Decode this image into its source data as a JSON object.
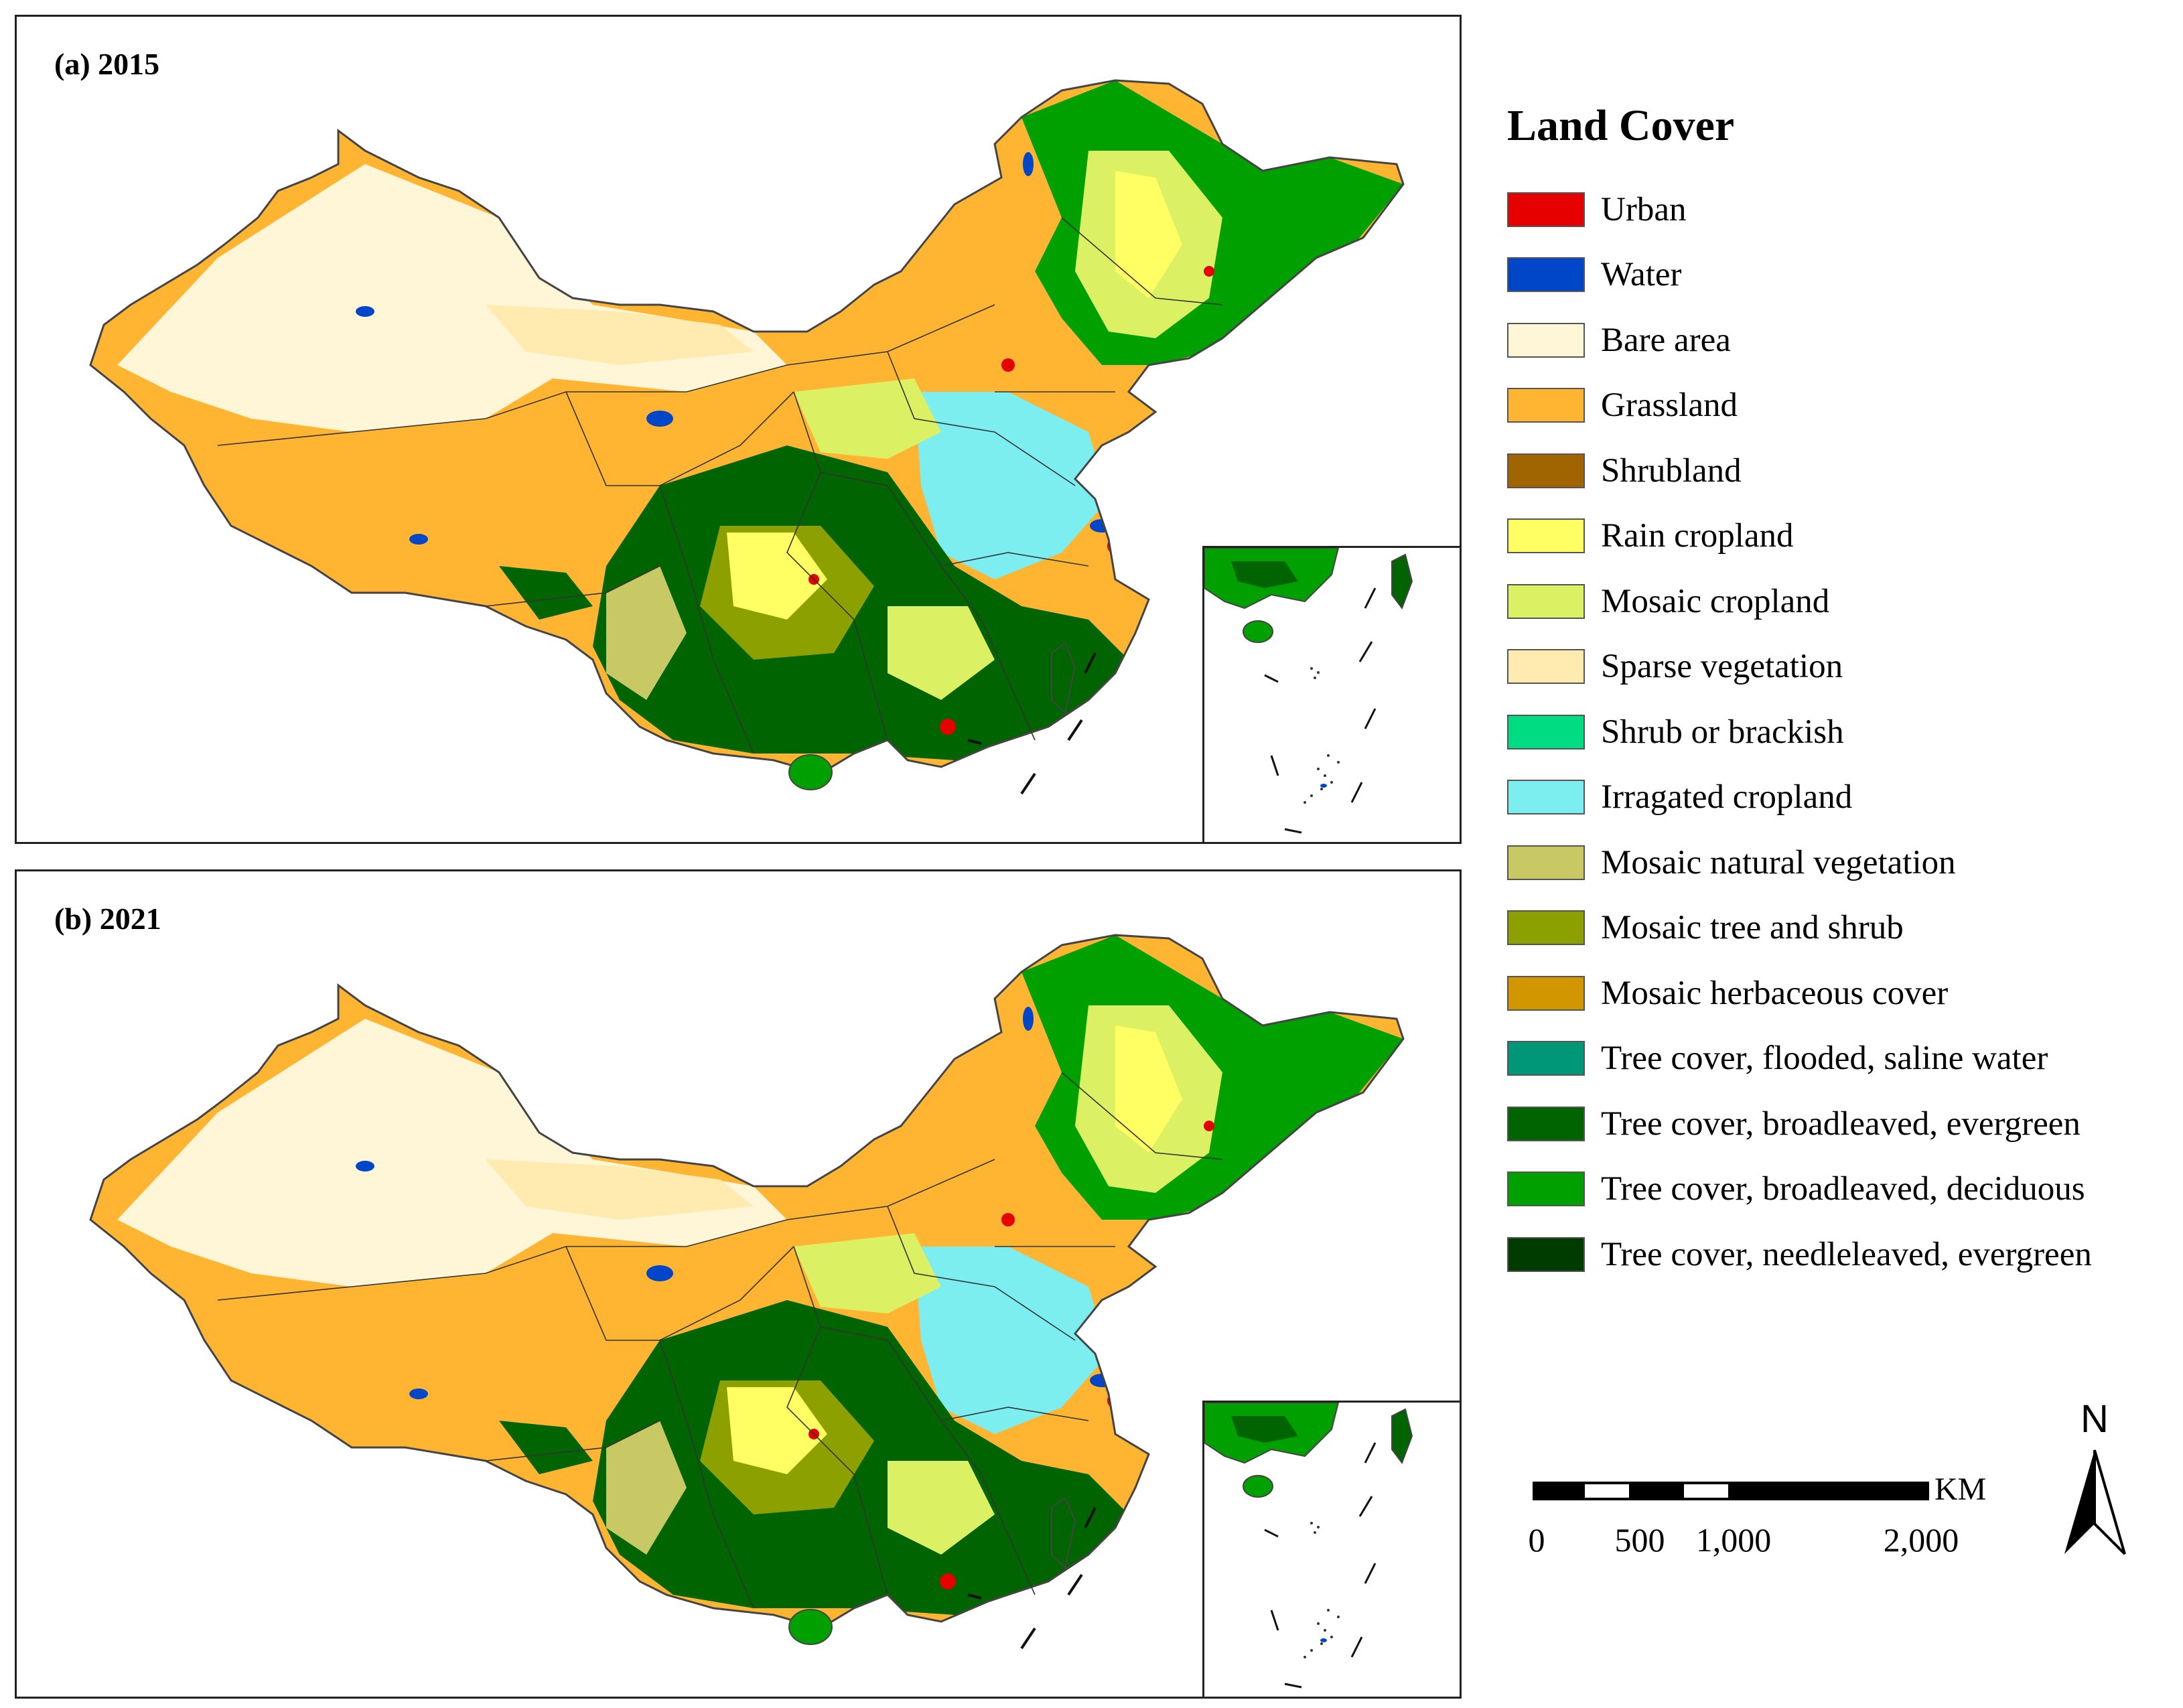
{
  "panels": [
    {
      "label": "(a) 2015"
    },
    {
      "label": "(b) 2021"
    }
  ],
  "legend": {
    "title": "Land Cover",
    "items": [
      {
        "label": "Urban",
        "color": "#e60000"
      },
      {
        "label": "Water",
        "color": "#0046c8"
      },
      {
        "label": "Bare area",
        "color": "#fff5d7"
      },
      {
        "label": "Grassland",
        "color": "#ffb432"
      },
      {
        "label": "Shrubland",
        "color": "#a06400"
      },
      {
        "label": "Rain cropland",
        "color": "#ffff64"
      },
      {
        "label": "Mosaic cropland",
        "color": "#dcf064"
      },
      {
        "label": "Sparse vegetation",
        "color": "#ffebaf"
      },
      {
        "label": "Shrub or brackish",
        "color": "#00dc82"
      },
      {
        "label": "Irragated cropland",
        "color": "#7deef0"
      },
      {
        "label": "Mosaic natural vegetation",
        "color": "#c8c864"
      },
      {
        "label": "Mosaic tree and shrub",
        "color": "#8ca000"
      },
      {
        "label": "Mosaic herbaceous cover",
        "color": "#d29600"
      },
      {
        "label": "Tree cover, flooded, saline water",
        "color": "#009678"
      },
      {
        "label": "Tree cover, broadleaved, evergreen",
        "color": "#006400"
      },
      {
        "label": "Tree cover, broadleaved, deciduous",
        "color": "#00a000"
      },
      {
        "label": "Tree cover, needleleaved, evergreen",
        "color": "#003c00"
      }
    ]
  },
  "scale_bar": {
    "unit": "KM",
    "ticks": [
      "0",
      "500",
      "1,000",
      "2,000"
    ]
  },
  "north_arrow": {
    "label": "N"
  }
}
